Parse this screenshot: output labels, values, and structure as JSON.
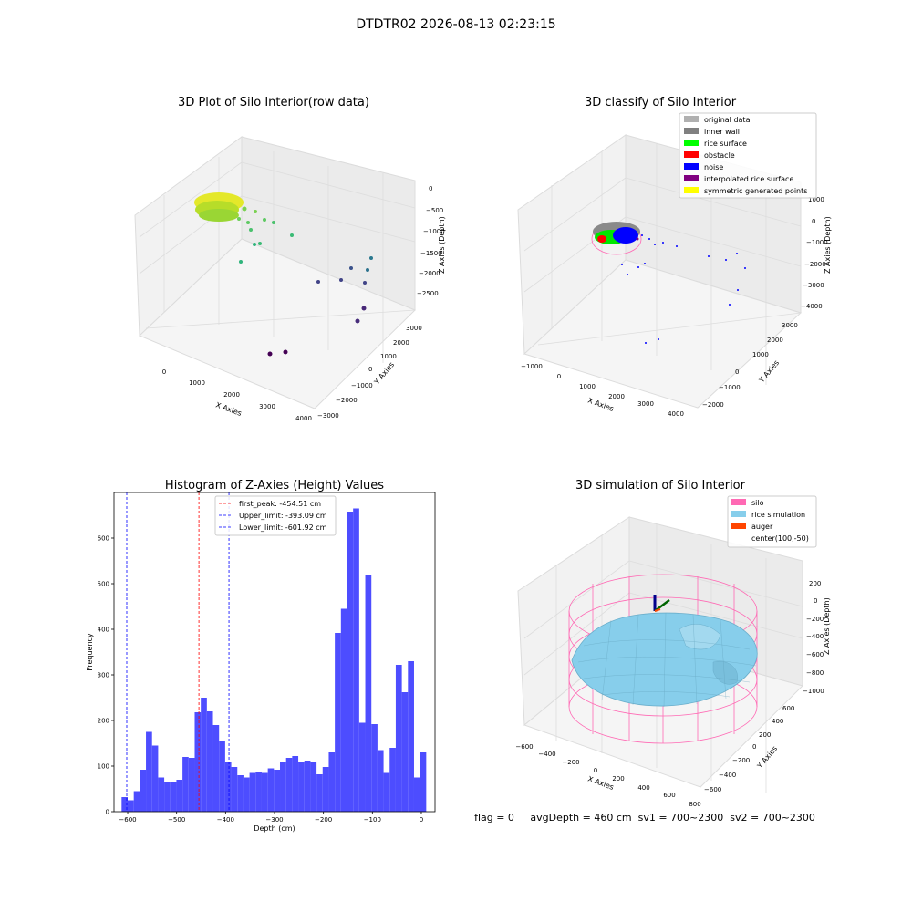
{
  "suptitle": "DTDTR02 2026-08-13 02:23:15",
  "footer": "flag = 0     avgDepth = 460 cm  sv1 = 700~2300  sv2 = 700~2300",
  "colors": {
    "silo": "#ff69b4",
    "rice_simulation": "#87ceeb",
    "auger": "#ff4500",
    "histogram_bar": "#4d4dff",
    "peak_line": "#ff0000",
    "limit_line": "#0000ff"
  },
  "chart_data": [
    {
      "type": "scatter",
      "chart_id": "raw-3d",
      "title": "3D Plot of Silo Interior(row data)",
      "xlabel": "X Axies",
      "ylabel": "Y Axies",
      "zlabel": "Z Axies (Depth)",
      "xticks": [
        "0",
        "1000",
        "2000",
        "3000",
        "4000"
      ],
      "yticks": [
        "−3000",
        "−2000",
        "−1000",
        "0",
        "1000",
        "2000",
        "3000"
      ],
      "zticks": [
        "0",
        "−500",
        "−1000",
        "−1500",
        "−2000",
        "−2500"
      ],
      "grid": true,
      "colormap": "viridis by depth"
    },
    {
      "type": "scatter",
      "chart_id": "classify-3d",
      "title": "3D classify of Silo Interior",
      "xlabel": "X Axies",
      "ylabel": "Y Axies",
      "zlabel": "Z Axies (Depth)",
      "xticks": [
        "−1000",
        "0",
        "1000",
        "2000",
        "3000",
        "4000"
      ],
      "yticks": [
        "−2000",
        "−1000",
        "0",
        "1000",
        "2000",
        "3000"
      ],
      "zticks": [
        "1000",
        "0",
        "−1000",
        "−2000",
        "−3000",
        "−4000"
      ],
      "grid": true,
      "legend_position": "top-right",
      "legend": [
        {
          "label": "original data",
          "color": "#b0b0b0"
        },
        {
          "label": "inner wall",
          "color": "#808080"
        },
        {
          "label": "rice surface",
          "color": "#00ff00"
        },
        {
          "label": "obstacle",
          "color": "#ff0000"
        },
        {
          "label": "noise",
          "color": "#0000ff"
        },
        {
          "label": "interpolated rice surface",
          "color": "#800080"
        },
        {
          "label": "symmetric generated points",
          "color": "#ffff00"
        }
      ]
    },
    {
      "type": "bar",
      "chart_id": "histogram",
      "title": "Histogram of Z-Axies (Height) Values",
      "xlabel": "Depth (cm)",
      "ylabel": "Frequency",
      "xlim": [
        -628,
        28
      ],
      "ylim": [
        0,
        700
      ],
      "xticks": [
        -600,
        -500,
        -400,
        -300,
        -200,
        -100,
        0
      ],
      "yticks": [
        0,
        100,
        200,
        300,
        400,
        500,
        600
      ],
      "bin_start": -612.5,
      "bin_width": 12.45,
      "values": [
        32,
        25,
        45,
        92,
        175,
        145,
        75,
        65,
        65,
        70,
        120,
        118,
        218,
        250,
        220,
        190,
        155,
        110,
        98,
        80,
        75,
        85,
        88,
        85,
        95,
        92,
        110,
        118,
        122,
        108,
        112,
        110,
        82,
        98,
        130,
        392,
        445,
        658,
        665,
        195,
        520,
        192,
        135,
        85,
        140,
        322,
        262,
        330,
        75,
        130
      ],
      "vlines": [
        {
          "label": "first_peak: -454.51 cm",
          "x": -454.51,
          "color": "#ff0000"
        },
        {
          "label": "Upper_limit: -393.09 cm",
          "x": -393.09,
          "color": "#0000ff"
        },
        {
          "label": "Lower_limit: -601.92 cm",
          "x": -601.92,
          "color": "#0000ff"
        }
      ],
      "legend_position": "upper-center"
    },
    {
      "type": "area",
      "chart_id": "simulation-3d",
      "title": "3D simulation of Silo Interior",
      "xlabel": "X Axies",
      "ylabel": "Y Axies",
      "zlabel": "Z Axies (Depth)",
      "xticks": [
        "−600",
        "−400",
        "−200",
        "0",
        "200",
        "400",
        "600",
        "800"
      ],
      "yticks": [
        "−600",
        "−400",
        "−200",
        "0",
        "200",
        "400",
        "600"
      ],
      "zticks": [
        "200",
        "0",
        "−200",
        "−400",
        "−600",
        "−800",
        "−1000"
      ],
      "grid": true,
      "legend_position": "top-right",
      "legend": [
        {
          "label": "silo",
          "color": "#ff69b4"
        },
        {
          "label": "rice simulation",
          "color": "#87ceeb"
        },
        {
          "label": "auger",
          "color": "#ff4500"
        },
        {
          "label": "center(100,-50)",
          "color": ""
        }
      ]
    }
  ]
}
